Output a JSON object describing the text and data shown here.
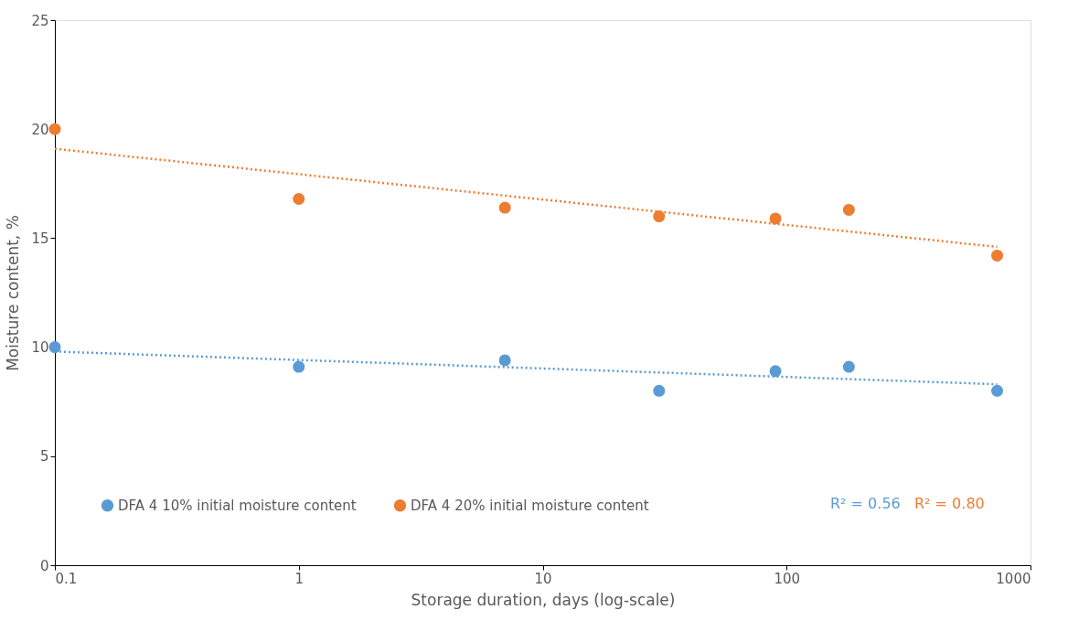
{
  "chart_data": {
    "type": "scatter",
    "xlabel": "Storage duration, days (log-scale)",
    "ylabel": "Moisture content, %",
    "log": "x",
    "xlim": [
      0.1,
      1000
    ],
    "xticks": [
      0.1,
      1,
      10,
      100,
      1000
    ],
    "ylim": [
      0,
      25
    ],
    "yticks": [
      0,
      5,
      10,
      15,
      20,
      25
    ],
    "grid": false,
    "legend": "bottom",
    "marker": "circle",
    "series": [
      {
        "name": "DFA 4 10% initial moisture content",
        "color": "#5b9bd5",
        "x": [
          0.1,
          1,
          7,
          30,
          90,
          180,
          730
        ],
        "values": [
          10.0,
          9.1,
          9.4,
          8.0,
          8.9,
          9.1,
          8.0
        ]
      },
      {
        "name": "DFA 4 20% initial moisture content",
        "color": "#ed7d31",
        "x": [
          0.1,
          1,
          7,
          30,
          90,
          180,
          730
        ],
        "values": [
          20.0,
          16.8,
          16.4,
          16.0,
          15.9,
          16.3,
          14.2
        ]
      },
      {
        "type": "line",
        "marker": "none",
        "line_style": "dotted",
        "color": "#5b9bd5",
        "x": [
          0.1,
          730
        ],
        "values": [
          9.8,
          8.3
        ]
      },
      {
        "type": "line",
        "marker": "none",
        "line_style": "dotted",
        "color": "#ed7d31",
        "x": [
          0.1,
          730
        ],
        "values": [
          19.1,
          14.6
        ]
      }
    ],
    "annotations": [
      "R² = 0.56",
      "R² = 0.80"
    ]
  }
}
